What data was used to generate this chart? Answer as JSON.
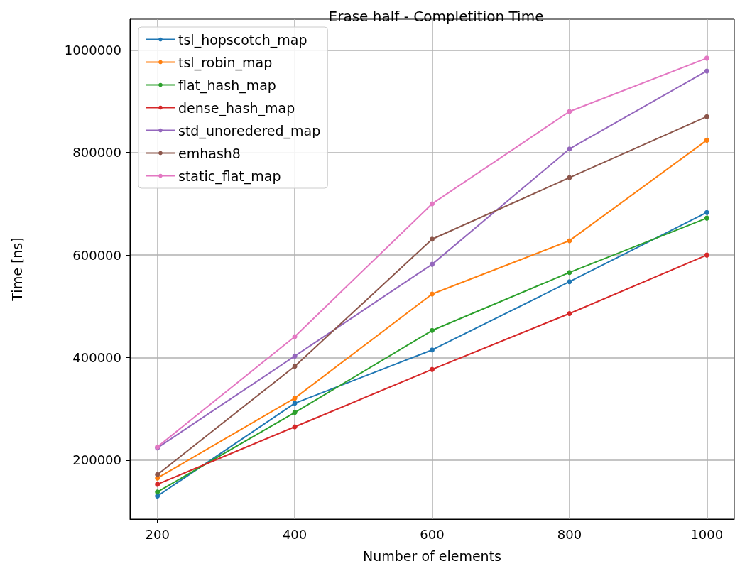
{
  "chart_data": {
    "type": "line",
    "title": "Erase half - Completition Time",
    "xlabel": "Number of elements",
    "ylabel": "Time [ns]",
    "x": [
      200,
      400,
      600,
      800,
      1000
    ],
    "series": [
      {
        "name": "tsl_hopscotch_map",
        "color": "#1f77b4",
        "values": [
          130000,
          311000,
          415000,
          548000,
          683000
        ]
      },
      {
        "name": "tsl_robin_map",
        "color": "#ff7f0e",
        "values": [
          165000,
          321000,
          524000,
          628000,
          824000
        ]
      },
      {
        "name": "flat_hash_map",
        "color": "#2ca02c",
        "values": [
          138000,
          293000,
          453000,
          566000,
          672000
        ]
      },
      {
        "name": "dense_hash_map",
        "color": "#d62728",
        "values": [
          153000,
          265000,
          377000,
          486000,
          600000
        ]
      },
      {
        "name": "std_unoredered_map",
        "color": "#9467bd",
        "values": [
          224000,
          403000,
          582000,
          807000,
          959000
        ]
      },
      {
        "name": "emhash8",
        "color": "#8c564b",
        "values": [
          172000,
          383000,
          631000,
          751000,
          870000
        ]
      },
      {
        "name": "static_flat_map",
        "color": "#e377c2",
        "values": [
          226000,
          441000,
          700000,
          880000,
          984000
        ]
      }
    ],
    "xlim": [
      160,
      1040
    ],
    "ylim": [
      85000,
      1060000
    ],
    "xticks": [
      200,
      400,
      600,
      800,
      1000
    ],
    "yticks": [
      200000,
      400000,
      600000,
      800000,
      1000000
    ],
    "grid": true,
    "legend": "top left",
    "marker": "circle",
    "line_style": "solid"
  }
}
